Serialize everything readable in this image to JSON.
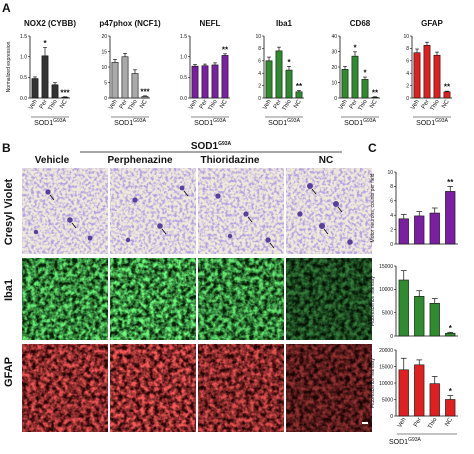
{
  "panels": {
    "a_letter": "A",
    "b_letter": "B",
    "c_letter": "C"
  },
  "group_label": "SOD1",
  "group_label_sup": "G93A",
  "panel_b": {
    "group_label": "SOD1",
    "group_label_sup": "G93A",
    "columns": [
      "Vehicle",
      "Perphenazine",
      "Thioridazine",
      "NC"
    ],
    "rows": [
      {
        "label": "Cresyl Violet",
        "stain": "cresyl"
      },
      {
        "label": "Iba1",
        "stain": "iba1"
      },
      {
        "label": "GFAP",
        "stain": "gfap"
      }
    ]
  },
  "chart_data": [
    {
      "type": "bar",
      "panel": "A",
      "title": "NOX2 (CYBB)",
      "ylabel": "Normalized expression",
      "categories": [
        "Veh",
        "Per",
        "Thio",
        "NC"
      ],
      "values": [
        0.47,
        1.02,
        0.32,
        0.02
      ],
      "errors": [
        0.04,
        0.2,
        0.05,
        0.01
      ],
      "significance": [
        "",
        "*",
        "",
        "***"
      ],
      "ylim": [
        0,
        1.5
      ],
      "yticks": [
        "0.0",
        "0.5",
        "1.0",
        "1.5"
      ],
      "color": "#333333"
    },
    {
      "type": "bar",
      "panel": "A",
      "title": "p47phox (NCF1)",
      "categories": [
        "Veh",
        "Per",
        "Thio",
        "NC"
      ],
      "values": [
        11.5,
        13.3,
        7.9,
        0.5
      ],
      "errors": [
        0.9,
        1.1,
        1.2,
        0.2
      ],
      "significance": [
        "",
        "",
        "",
        "***"
      ],
      "ylim": [
        0,
        20
      ],
      "yticks": [
        "0",
        "5",
        "10",
        "15",
        "20"
      ],
      "color": "#aaaaaa"
    },
    {
      "type": "bar",
      "panel": "A",
      "title": "NEFL",
      "categories": [
        "Veh",
        "Per",
        "Thio",
        "NC"
      ],
      "values": [
        0.77,
        0.78,
        0.8,
        1.03
      ],
      "errors": [
        0.04,
        0.04,
        0.05,
        0.04
      ],
      "significance": [
        "",
        "",
        "",
        "**"
      ],
      "ylim": [
        0,
        1.5
      ],
      "yticks": [
        "0.0",
        "0.5",
        "1.0",
        "1.5"
      ],
      "color": "#7b1fa2"
    },
    {
      "type": "bar",
      "panel": "A",
      "title": "Iba1",
      "categories": [
        "Veh",
        "Per",
        "Thio",
        "NC"
      ],
      "values": [
        6.0,
        7.6,
        4.5,
        1.0
      ],
      "errors": [
        0.6,
        0.6,
        0.6,
        0.2
      ],
      "significance": [
        "",
        "",
        "*",
        "**"
      ],
      "ylim": [
        0,
        10
      ],
      "yticks": [
        "0",
        "2",
        "4",
        "6",
        "8",
        "10"
      ],
      "color": "#2e8b2e"
    },
    {
      "type": "bar",
      "panel": "A",
      "title": "CD68",
      "categories": [
        "Veh",
        "Per",
        "Thio",
        "NC"
      ],
      "values": [
        18.5,
        27.0,
        12.0,
        0.5
      ],
      "errors": [
        1.8,
        2.8,
        1.5,
        0.3
      ],
      "significance": [
        "",
        "*",
        "*",
        "**"
      ],
      "ylim": [
        0,
        40
      ],
      "yticks": [
        "0",
        "10",
        "20",
        "30",
        "40"
      ],
      "color": "#2e8b2e"
    },
    {
      "type": "bar",
      "panel": "A",
      "title": "GFAP",
      "categories": [
        "Veh",
        "Per",
        "Thio",
        "NC"
      ],
      "values": [
        7.3,
        8.5,
        6.9,
        1.0
      ],
      "errors": [
        0.6,
        0.5,
        0.5,
        0.1
      ],
      "significance": [
        "",
        "",
        "",
        "**"
      ],
      "ylim": [
        0,
        10
      ],
      "yticks": [
        "0",
        "2",
        "4",
        "6",
        "8",
        "10"
      ],
      "color": "#e02020"
    },
    {
      "type": "bar",
      "panel": "C",
      "ylabel": "Motor neurons, counts per field",
      "categories": [
        "Veh",
        "Per",
        "Thio",
        "NC"
      ],
      "values": [
        3.5,
        3.9,
        4.3,
        7.3
      ],
      "errors": [
        0.6,
        0.6,
        0.7,
        0.7
      ],
      "significance": [
        "",
        "",
        "",
        "**"
      ],
      "ylim": [
        0,
        10
      ],
      "yticks": [
        "0",
        "2",
        "4",
        "6",
        "8",
        "10"
      ],
      "color": "#7b1fa2"
    },
    {
      "type": "bar",
      "panel": "C",
      "ylabel": "Fluorescence intensity",
      "categories": [
        "Veh",
        "Per",
        "Thio",
        "NC"
      ],
      "values": [
        12000,
        8500,
        7000,
        600
      ],
      "errors": [
        2000,
        1200,
        1000,
        200
      ],
      "significance": [
        "",
        "",
        "",
        "*"
      ],
      "ylim": [
        0,
        15000
      ],
      "yticks": [
        "0",
        "5000",
        "10000",
        "15000"
      ],
      "color": "#2e8b2e"
    },
    {
      "type": "bar",
      "panel": "C",
      "ylabel": "Fluorescence intensity",
      "categories": [
        "Veh",
        "Per",
        "Thio",
        "NC"
      ],
      "values": [
        14000,
        15500,
        9800,
        5000
      ],
      "errors": [
        3500,
        1500,
        2200,
        1200
      ],
      "significance": [
        "",
        "",
        "",
        "*"
      ],
      "ylim": [
        0,
        20000
      ],
      "yticks": [
        "0",
        "5000",
        "10000",
        "15000",
        "20000"
      ],
      "color": "#e02020"
    }
  ]
}
